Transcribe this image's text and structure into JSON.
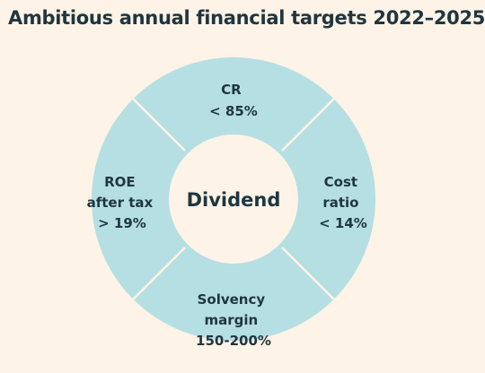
{
  "title": "Ambitious annual financial targets 2022–2025",
  "center": "Dividend",
  "segments": [
    {
      "id": "top",
      "lines": [
        "CR",
        "< 85%"
      ]
    },
    {
      "id": "right",
      "lines": [
        "Cost",
        "ratio",
        "< 14%"
      ]
    },
    {
      "id": "bottom",
      "lines": [
        "Solvency",
        "margin",
        "150-200%"
      ]
    },
    {
      "id": "left",
      "lines": [
        "ROE",
        "after tax",
        "> 19%"
      ]
    }
  ],
  "colors": {
    "background": "#fdf3e6",
    "ring": "#b5dfe3",
    "center": "#fdf3e6",
    "text": "#1f3640"
  }
}
